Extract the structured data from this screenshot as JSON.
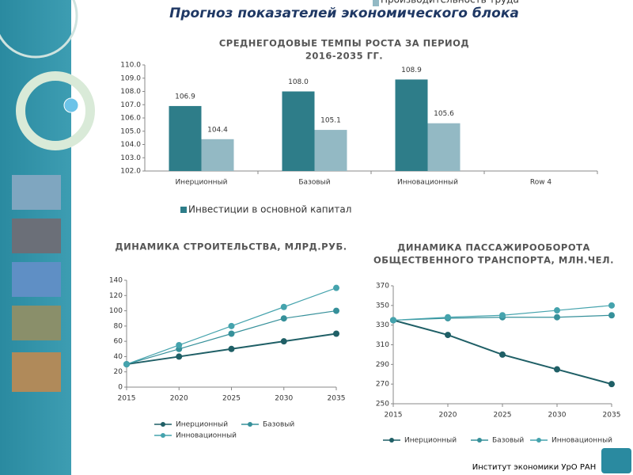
{
  "title": "Прогноз показателей экономического блока",
  "footer": "Институт экономики УрО РАН",
  "chart_data": [
    {
      "type": "bar",
      "title": [
        "СРЕДНЕГОДОВЫЕ ТЕМПЫ РОСТА ЗА ПЕРИОД",
        "2016-2035 ГГ."
      ],
      "categories": [
        "Инерционный",
        "Базовый",
        "Инновационный",
        "Row 4"
      ],
      "series": [
        {
          "name": "Инвестиции в основной капитал",
          "color": "#2e7d89",
          "values": [
            106.9,
            108.0,
            108.9,
            null
          ],
          "value_labels": [
            "106.9",
            "108.0",
            "108.9",
            null
          ]
        },
        {
          "name": "Производительность труда",
          "color": "#93b9c4",
          "values": [
            104.4,
            105.1,
            105.6,
            null
          ],
          "value_labels": [
            "104.4",
            "105.1",
            "105.6",
            null
          ]
        }
      ],
      "ylim": [
        102,
        110
      ],
      "yticks": [
        {
          "value": 102,
          "label": "102.0"
        },
        {
          "value": 103,
          "label": "103.0"
        },
        {
          "value": 104,
          "label": "104.0"
        },
        {
          "value": 105,
          "label": "105.0"
        },
        {
          "value": 106,
          "label": "106.0"
        },
        {
          "value": 107,
          "label": "107.0"
        },
        {
          "value": 108,
          "label": "108.0"
        },
        {
          "value": 109,
          "label": "109.0"
        },
        {
          "value": 110,
          "label": "110.0"
        }
      ],
      "legend": "bottom"
    },
    {
      "type": "line",
      "title": [
        "ДИНАМИКА СТРОИТЕЛЬСТВА, МЛРД.РУБ."
      ],
      "x": [
        2015,
        2020,
        2025,
        2030,
        2035
      ],
      "xlim": [
        2015,
        2035
      ],
      "xticks": [
        2015,
        2020,
        2025,
        2030,
        2035
      ],
      "series": [
        {
          "name": "Инерционный",
          "color": "#1f5f66",
          "values": [
            30,
            40,
            50,
            60,
            70
          ]
        },
        {
          "name": "Базовый",
          "color": "#36909a",
          "values": [
            30,
            50,
            70,
            90,
            100
          ]
        },
        {
          "name": "Инновационный",
          "color": "#45a3ad",
          "values": [
            30,
            55,
            80,
            105,
            130
          ]
        }
      ],
      "ylim": [
        0,
        140
      ],
      "yticks": [
        0,
        20,
        40,
        60,
        80,
        100,
        120,
        140
      ],
      "legend": "bottom"
    },
    {
      "type": "line",
      "title": [
        "ДИНАМИКА ПАССАЖИРООБОРОТА",
        "ОБЩЕСТВЕННОГО ТРАНСПОРТА, МЛН.ЧЕЛ."
      ],
      "x": [
        2015,
        2020,
        2025,
        2030,
        2035
      ],
      "xlim": [
        2015,
        2035
      ],
      "xticks": [
        2015,
        2020,
        2025,
        2030,
        2035
      ],
      "series": [
        {
          "name": "Инерционный",
          "color": "#1f5f66",
          "values": [
            335,
            320,
            300,
            285,
            270
          ]
        },
        {
          "name": "Базовый",
          "color": "#36909a",
          "values": [
            335,
            337,
            338,
            338,
            340
          ]
        },
        {
          "name": "Инновационный",
          "color": "#45a3ad",
          "values": [
            335,
            338,
            340,
            345,
            350
          ]
        }
      ],
      "ylim": [
        250,
        370
      ],
      "yticks": [
        250,
        270,
        290,
        310,
        330,
        350,
        370
      ],
      "legend": "bottom"
    }
  ]
}
